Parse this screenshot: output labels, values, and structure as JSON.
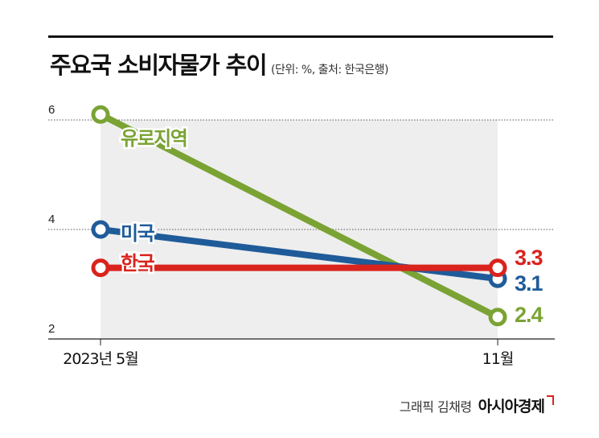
{
  "header": {
    "title": "주요국 소비자물가 추이",
    "subtitle": "(단위: %, 출처: 한국은행)"
  },
  "footer": {
    "credit": "그래픽 김채령",
    "brand": "아시아경제"
  },
  "colors": {
    "euro": "#7aa334",
    "us": "#1f5b99",
    "korea": "#d9231d"
  },
  "chart_data": {
    "type": "line",
    "title": "주요국 소비자물가 추이",
    "subtitle": "(단위: %, 출처: 한국은행)",
    "categories": [
      "2023년 5월",
      "11월"
    ],
    "ylim": [
      2,
      6
    ],
    "yticks": [
      2,
      4,
      6
    ],
    "grid": true,
    "series": [
      {
        "name": "유로지역",
        "values": [
          6.1,
          2.4
        ],
        "end_label": "2.4",
        "color": "#7aa334"
      },
      {
        "name": "미국",
        "values": [
          4.0,
          3.1
        ],
        "end_label": "3.1",
        "color": "#1f5b99"
      },
      {
        "name": "한국",
        "values": [
          3.3,
          3.3
        ],
        "end_label": "3.3",
        "color": "#d9231d"
      }
    ]
  }
}
